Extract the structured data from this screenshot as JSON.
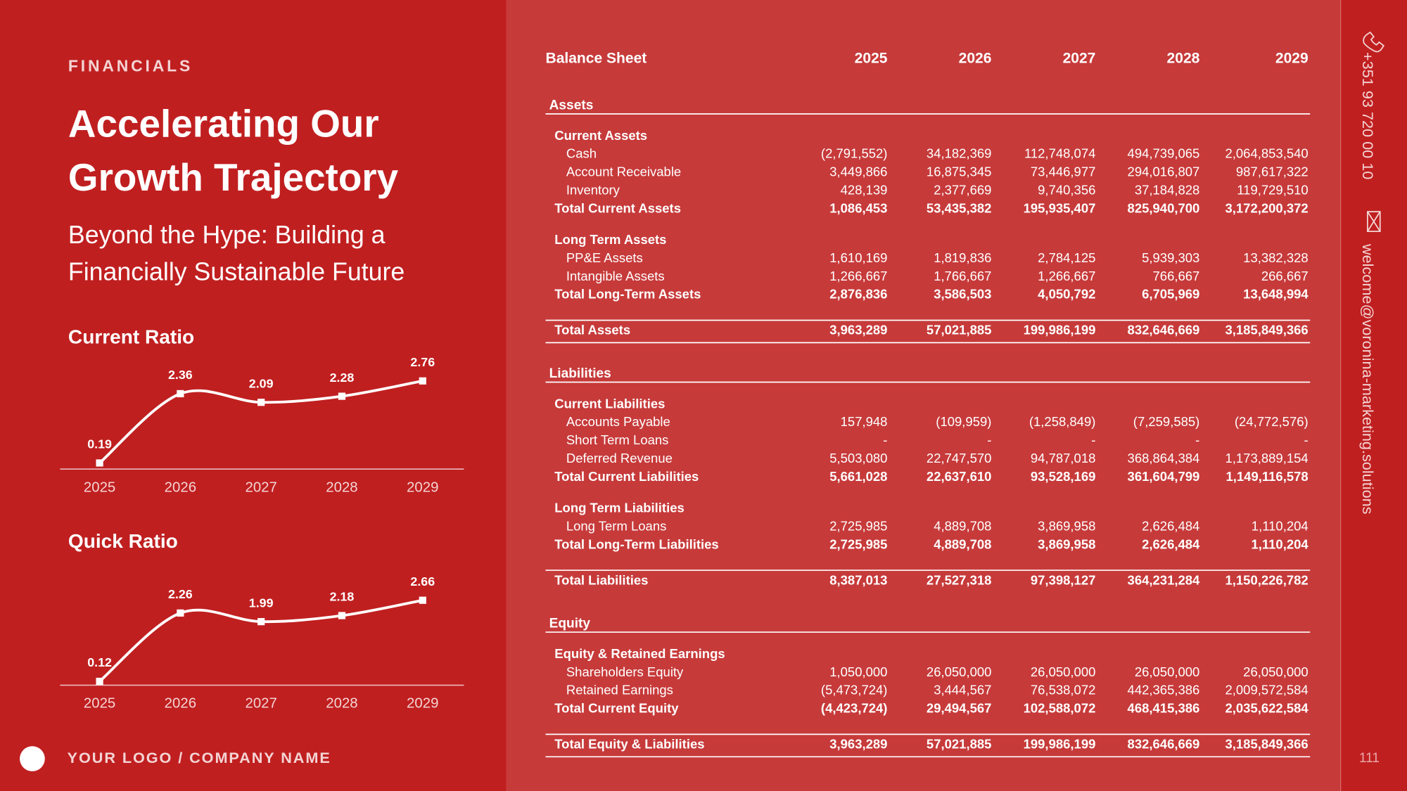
{
  "header": {
    "section": "FINANCIALS",
    "title": [
      "Accelerating Our",
      "Growth Trajectory"
    ],
    "subtitle": [
      "Beyond the Hype: Building a",
      "Financially Sustainable Future"
    ]
  },
  "chart_data": [
    {
      "type": "line",
      "title": "Current Ratio",
      "categories": [
        "2025",
        "2026",
        "2027",
        "2028",
        "2029"
      ],
      "values": [
        0.19,
        2.36,
        2.09,
        2.28,
        2.76
      ],
      "color": "#ffffff",
      "ylim": [
        0,
        3
      ]
    },
    {
      "type": "line",
      "title": "Quick Ratio",
      "categories": [
        "2025",
        "2026",
        "2027",
        "2028",
        "2029"
      ],
      "values": [
        0.12,
        2.26,
        1.99,
        2.18,
        2.66
      ],
      "color": "#ffffff",
      "ylim": [
        0,
        3
      ]
    }
  ],
  "table": {
    "header": [
      "Balance Sheet",
      "2025",
      "2026",
      "2027",
      "2028",
      "2029"
    ],
    "sections": [
      {
        "title": "Assets",
        "groups": [
          {
            "title": "Current Assets",
            "items": [
              [
                "Cash",
                "(2,791,552)",
                "34,182,369",
                "112,748,074",
                "494,739,065",
                "2,064,853,540"
              ],
              [
                "Account Receivable",
                "3,449,866",
                "16,875,345",
                "73,446,977",
                "294,016,807",
                "987,617,322"
              ],
              [
                "Inventory",
                "428,139",
                "2,377,669",
                "9,740,356",
                "37,184,828",
                "119,729,510"
              ]
            ],
            "total": [
              "Total Current Assets",
              "1,086,453",
              "53,435,382",
              "195,935,407",
              "825,940,700",
              "3,172,200,372"
            ]
          },
          {
            "title": "Long Term Assets",
            "items": [
              [
                "PP&E Assets",
                "1,610,169",
                "1,819,836",
                "2,784,125",
                "5,939,303",
                "13,382,328"
              ],
              [
                "Intangible Assets",
                "1,266,667",
                "1,766,667",
                "1,266,667",
                "766,667",
                "266,667"
              ]
            ],
            "total": [
              "Total Long-Term Assets",
              "2,876,836",
              "3,586,503",
              "4,050,792",
              "6,705,969",
              "13,648,994"
            ]
          }
        ],
        "total": [
          "Total Assets",
          "3,963,289",
          "57,021,885",
          "199,986,199",
          "832,646,669",
          "3,185,849,366"
        ]
      },
      {
        "title": "Liabilities",
        "groups": [
          {
            "title": "Current Liabilities",
            "items": [
              [
                "Accounts Payable",
                "157,948",
                "(109,959)",
                "(1,258,849)",
                "(7,259,585)",
                "(24,772,576)"
              ],
              [
                "Short Term Loans",
                "-",
                "-",
                "-",
                "-",
                "-"
              ],
              [
                "Deferred Revenue",
                "5,503,080",
                "22,747,570",
                "94,787,018",
                "368,864,384",
                "1,173,889,154"
              ]
            ],
            "total": [
              "Total Current Liabilities",
              "5,661,028",
              "22,637,610",
              "93,528,169",
              "361,604,799",
              "1,149,116,578"
            ]
          },
          {
            "title": "Long Term Liabilities",
            "items": [
              [
                "Long Term Loans",
                "2,725,985",
                "4,889,708",
                "3,869,958",
                "2,626,484",
                "1,110,204"
              ]
            ],
            "total": [
              "Total Long-Term Liabilities",
              "2,725,985",
              "4,889,708",
              "3,869,958",
              "2,626,484",
              "1,110,204"
            ]
          }
        ],
        "total": [
          "Total Liabilities",
          "8,387,013",
          "27,527,318",
          "97,398,127",
          "364,231,284",
          "1,150,226,782"
        ]
      },
      {
        "title": "Equity",
        "groups": [
          {
            "title": "Equity & Retained Earnings",
            "items": [
              [
                "Shareholders Equity",
                "1,050,000",
                "26,050,000",
                "26,050,000",
                "26,050,000",
                "26,050,000"
              ],
              [
                "Retained Earnings",
                "(5,473,724)",
                "3,444,567",
                "76,538,072",
                "442,365,386",
                "2,009,572,584"
              ]
            ],
            "total": [
              "Total Current Equity",
              "(4,423,724)",
              "29,494,567",
              "102,588,072",
              "468,415,386",
              "2,035,622,584"
            ]
          }
        ],
        "total": [
          "Total Equity & Liabilities",
          "3,963,289",
          "57,021,885",
          "199,986,199",
          "832,646,669",
          "3,185,849,366"
        ]
      }
    ]
  },
  "contact": {
    "phone": "+351 93 720 00 10",
    "email": "welcome@voronina-marketing.solutions"
  },
  "footer": {
    "logo": "YOUR LOGO / COMPANY NAME",
    "page": "111"
  }
}
